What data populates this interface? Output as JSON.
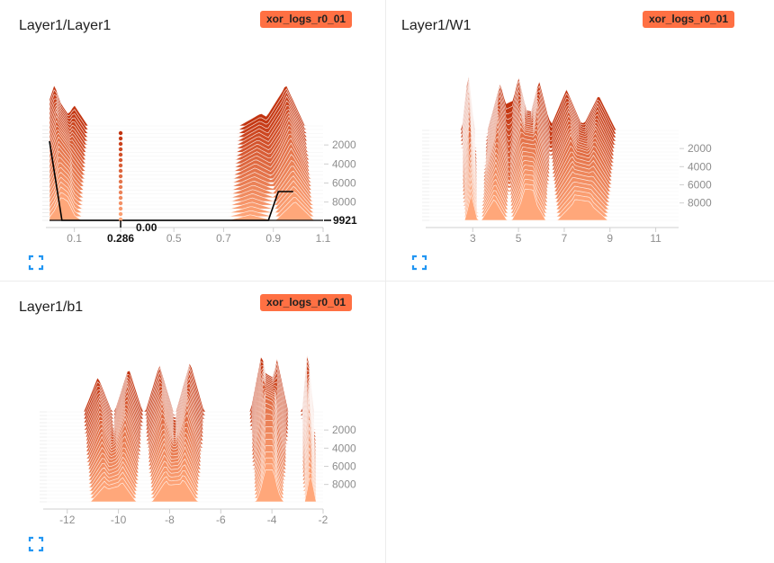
{
  "cards": [
    {
      "title": "Layer1/Layer1",
      "run": "xor_logs_r0_01",
      "expand_icon": "fullscreen-icon",
      "hover": {
        "x_label": "0.286",
        "value_label": "0.00",
        "step_label": "9921"
      }
    },
    {
      "title": "Layer1/W1",
      "run": "xor_logs_r0_01",
      "expand_icon": "fullscreen-icon"
    },
    {
      "title": "Layer1/b1",
      "run": "xor_logs_r0_01",
      "expand_icon": "fullscreen-icon"
    }
  ],
  "colors": {
    "dark": "#c2330f",
    "light": "#ffa77a",
    "badge": "#ff7043",
    "icon": "#2196f3",
    "grid": "#e0e0e0"
  },
  "chart_data": [
    {
      "type": "area",
      "mode": "offset-histogram",
      "x_ticks": [
        0.1,
        0.286,
        0.5,
        0.7,
        0.9,
        1.1
      ],
      "xlim": [
        0.0,
        1.1
      ],
      "step_ticks": [
        2000,
        4000,
        6000,
        8000
      ],
      "step_range": [
        0,
        9921
      ],
      "peaks": [
        {
          "x": 0.02,
          "w": 0.05,
          "h": 1.0
        },
        {
          "x": 0.1,
          "w": 0.05,
          "h": 0.5
        },
        {
          "x": 0.95,
          "w": 0.07,
          "h": 1.0
        },
        {
          "x": 0.85,
          "w": 0.08,
          "h": 0.3
        }
      ]
    },
    {
      "type": "area",
      "mode": "offset-histogram",
      "x_ticks": [
        3,
        5,
        7,
        9,
        11
      ],
      "xlim": [
        1.1,
        12.0
      ],
      "step_ticks": [
        2000,
        4000,
        6000,
        8000
      ],
      "step_range": [
        0,
        9921
      ],
      "peaks": [
        {
          "x": 2.8,
          "w": 0.25,
          "h": 1.0
        },
        {
          "x": 4.2,
          "w": 0.5,
          "h": 0.8
        },
        {
          "x": 5.0,
          "w": 0.5,
          "h": 0.9
        },
        {
          "x": 5.9,
          "w": 0.5,
          "h": 0.85
        },
        {
          "x": 7.1,
          "w": 0.7,
          "h": 0.7
        },
        {
          "x": 8.5,
          "w": 0.7,
          "h": 0.6
        }
      ]
    },
    {
      "type": "area",
      "mode": "offset-histogram",
      "x_ticks": [
        -12,
        -10,
        -8,
        -6,
        -4,
        -2
      ],
      "xlim": [
        -12.8,
        -2.0
      ],
      "step_ticks": [
        2000,
        4000,
        6000,
        8000
      ],
      "step_range": [
        0,
        9921
      ],
      "peaks": [
        {
          "x": -10.8,
          "w": 0.5,
          "h": 0.6
        },
        {
          "x": -9.6,
          "w": 0.5,
          "h": 0.75
        },
        {
          "x": -8.4,
          "w": 0.5,
          "h": 0.8
        },
        {
          "x": -7.2,
          "w": 0.5,
          "h": 0.85
        },
        {
          "x": -4.4,
          "w": 0.4,
          "h": 1.0
        },
        {
          "x": -3.8,
          "w": 0.4,
          "h": 0.9
        },
        {
          "x": -2.6,
          "w": 0.2,
          "h": 1.1
        }
      ]
    }
  ]
}
